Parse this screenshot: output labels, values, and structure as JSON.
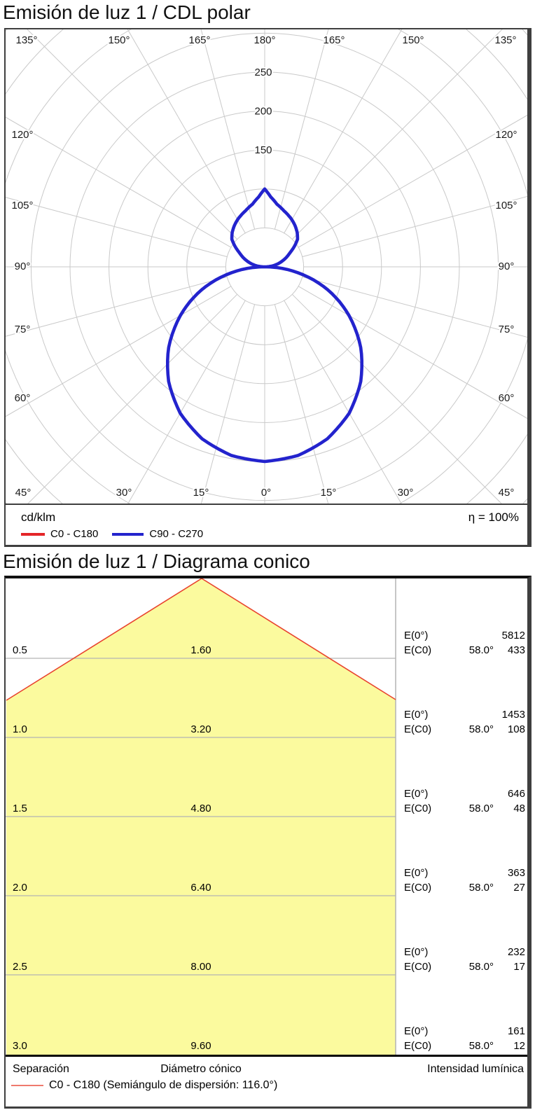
{
  "polar": {
    "title": "Emisión de luz 1 / CDL polar",
    "unit": "cd/klm",
    "efficiency": "η = 100%",
    "angle_labels_top": [
      "135°",
      "150°",
      "165°",
      "180°",
      "165°",
      "150°",
      "135°"
    ],
    "angle_labels_bottom": [
      "45°",
      "30°",
      "15°",
      "0°",
      "15°",
      "30°",
      "45°"
    ],
    "angle_labels_left": [
      "120°",
      "105°",
      "90°",
      "75°",
      "60°"
    ],
    "angle_labels_right": [
      "120°",
      "105°",
      "90°",
      "75°",
      "60°"
    ],
    "ring_labels": [
      "150",
      "200",
      "250"
    ]
  },
  "cone": {
    "title": "Emisión de luz 1 / Diagrama conico",
    "e0_label": "E(0°)",
    "ec0_label": "E(C0)",
    "beam_angle": "58.0°",
    "footer": {
      "separation": "Separación",
      "diameter": "Diámetro cónico",
      "intensity": "Intensidad lumínica",
      "legend": "C0 - C180 (Semiángulo de dispersión: 116.0°)",
      "legend_color": "#ef7a6d"
    }
  },
  "chart_data": [
    {
      "type": "polar_line",
      "title": "Emisión de luz 1 / CDL polar",
      "units": "cd/klm",
      "efficiency_percent": 100,
      "ring_step_cd_klm": 50,
      "ring_max_cd_klm": 450,
      "labeled_rings": [
        150,
        200,
        250
      ],
      "spoke_step_deg": 15,
      "grid": true,
      "series": [
        {
          "name": "C0 - C180",
          "color": "#e42528",
          "points_gamma_cd": [
            [
              0,
              250
            ],
            [
              10,
              246
            ],
            [
              20,
              235
            ],
            [
              30,
              217
            ],
            [
              40,
              192
            ],
            [
              50,
              161
            ],
            [
              60,
              125
            ],
            [
              65,
              106
            ],
            [
              70,
              86
            ],
            [
              75,
              65
            ],
            [
              80,
              43
            ],
            [
              85,
              22
            ],
            [
              90,
              0
            ],
            [
              95,
              8
            ],
            [
              100,
              14
            ],
            [
              105,
              20
            ],
            [
              110,
              26
            ],
            [
              119,
              37
            ],
            [
              125,
              47
            ],
            [
              130,
              55
            ],
            [
              137,
              61
            ],
            [
              144,
              66
            ],
            [
              152,
              71
            ],
            [
              161,
              76
            ],
            [
              169,
              82
            ],
            [
              175,
              90
            ],
            [
              180,
              100
            ]
          ]
        },
        {
          "name": "C90 - C270",
          "color": "#2323cd",
          "points_gamma_cd": [
            [
              0,
              250
            ],
            [
              10,
              246
            ],
            [
              20,
              235
            ],
            [
              30,
              217
            ],
            [
              40,
              192
            ],
            [
              50,
              161
            ],
            [
              60,
              125
            ],
            [
              65,
              106
            ],
            [
              70,
              86
            ],
            [
              75,
              65
            ],
            [
              80,
              43
            ],
            [
              85,
              22
            ],
            [
              90,
              0
            ],
            [
              95,
              8
            ],
            [
              100,
              14
            ],
            [
              105,
              20
            ],
            [
              110,
              26
            ],
            [
              119,
              37
            ],
            [
              125,
              47
            ],
            [
              130,
              55
            ],
            [
              137,
              61
            ],
            [
              144,
              66
            ],
            [
              152,
              71
            ],
            [
              161,
              76
            ],
            [
              169,
              82
            ],
            [
              175,
              90
            ],
            [
              180,
              100
            ]
          ]
        }
      ]
    },
    {
      "type": "cone_diagram",
      "title": "Emisión de luz 1 / Diagrama conico",
      "beam_half_angle_deg": 58.0,
      "semi_dispersion_angle_deg": 116.0,
      "fill_color": "#fbfa9e",
      "cone_edge_color": "#e8432e",
      "rows": [
        {
          "separation_m": 0.5,
          "cone_diameter_m": 1.6,
          "E0_lux": 5812,
          "EC0_lux": 433
        },
        {
          "separation_m": 1.0,
          "cone_diameter_m": 3.2,
          "E0_lux": 1453,
          "EC0_lux": 108
        },
        {
          "separation_m": 1.5,
          "cone_diameter_m": 4.8,
          "E0_lux": 646,
          "EC0_lux": 48
        },
        {
          "separation_m": 2.0,
          "cone_diameter_m": 6.4,
          "E0_lux": 363,
          "EC0_lux": 27
        },
        {
          "separation_m": 2.5,
          "cone_diameter_m": 8.0,
          "E0_lux": 232,
          "EC0_lux": 17
        },
        {
          "separation_m": 3.0,
          "cone_diameter_m": 9.6,
          "E0_lux": 161,
          "EC0_lux": 12
        }
      ]
    }
  ]
}
